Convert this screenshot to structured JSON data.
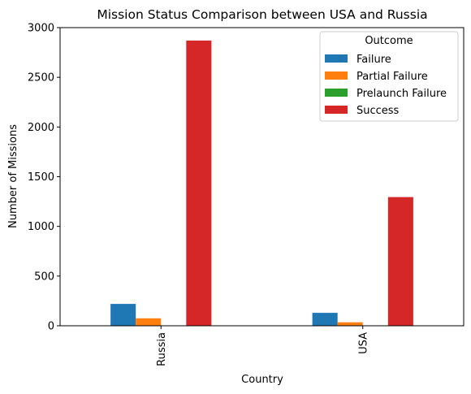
{
  "chart_data": {
    "type": "bar",
    "title": "Mission Status Comparison between USA and Russia",
    "xlabel": "Country",
    "ylabel": "Number of Missions",
    "categories": [
      "Russia",
      "USA"
    ],
    "ylim": [
      0,
      3000
    ],
    "yticks": [
      0,
      500,
      1000,
      1500,
      2000,
      2500,
      3000
    ],
    "grid": false,
    "legend": {
      "title": "Outcome",
      "placement": "top-right"
    },
    "series": [
      {
        "name": "Failure",
        "values": [
          220,
          130
        ],
        "color": "#1f77b4"
      },
      {
        "name": "Partial Failure",
        "values": [
          75,
          35
        ],
        "color": "#ff7f0e"
      },
      {
        "name": "Prelaunch Failure",
        "values": [
          0,
          1
        ],
        "color": "#2ca02c"
      },
      {
        "name": "Success",
        "values": [
          2870,
          1295
        ],
        "color": "#d62728"
      }
    ]
  }
}
